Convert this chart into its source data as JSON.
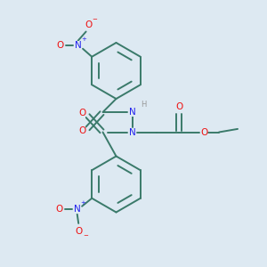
{
  "bg_color": "#dde9f2",
  "bond_color": "#3a7a6a",
  "N_color": "#2222ee",
  "O_color": "#ee1111",
  "H_color": "#999999",
  "lw": 1.4,
  "fs": 7.5,
  "fig_size": [
    3.0,
    3.0
  ],
  "dpi": 100,
  "xlim": [
    0,
    10
  ],
  "ylim": [
    0,
    10
  ]
}
